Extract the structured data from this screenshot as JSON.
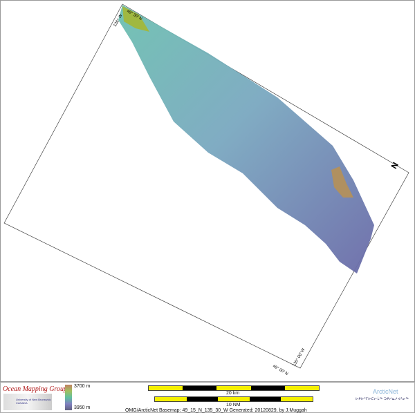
{
  "map": {
    "graticule_labels": {
      "top_lat": "49° 30' N",
      "top_lon": "136° W",
      "bottom_lat": "49° 00' N",
      "bottom_lon": "135° 00' W"
    },
    "north_arrow": "N",
    "colors": {
      "shallow": "#c0a040",
      "mid": "#60b0a0",
      "deep": "#7070b0"
    }
  },
  "footer": {
    "org": "Ocean Mapping Group",
    "org_sub": "University of New Brunswick CANADA",
    "depth_top": "3700 m",
    "depth_bottom": "3950 m",
    "scale_km": "20 km",
    "scale_nm": "10 NM",
    "caption": "OMG/ArcticNet Basemap: 49_15_N_135_30_W    Generated: 20120829, by J.Muggah",
    "brand": "ArcticNet",
    "brand_inuktitut": "ᐅᑭᐅᕐᒥᐅᑕᓕᒫᖅ ᑐᑭᓯᓇᓱᐊᕐᓂᖅ"
  }
}
